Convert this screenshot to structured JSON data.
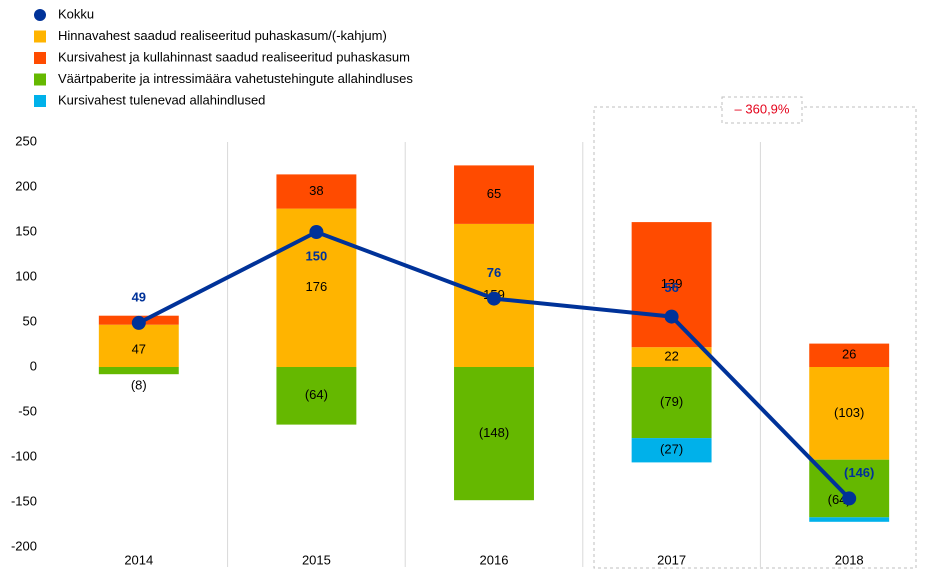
{
  "chart_data": {
    "type": "stacked_bar_line",
    "categories": [
      "2014",
      "2015",
      "2016",
      "2017",
      "2018"
    ],
    "series": [
      {
        "name": "Hinnavahest saadud realiseeritud puhaskasum/(-kahjum)",
        "color": "#ffb400",
        "values": [
          47,
          176,
          159,
          22,
          -103
        ],
        "value_labels": [
          "47",
          "176",
          "159",
          "22",
          "(103)"
        ]
      },
      {
        "name": "Kursivahest ja kullahinnast saadud realiseeritud puhaskasum",
        "color": "#ff4b00",
        "values": [
          10,
          38,
          65,
          139,
          26
        ],
        "value_labels": [
          null,
          "38",
          "65",
          "139",
          "26"
        ]
      },
      {
        "name": "Väärtpaberite ja intressimäära vahetustehingute allahindluses",
        "color": "#65b800",
        "values": [
          -8,
          -64,
          -148,
          -79,
          -64
        ],
        "value_labels": [
          "(8)",
          "(64)",
          "(148)",
          "(79)",
          "(64)"
        ]
      },
      {
        "name": "Kursivahest tulenevad allahindlused",
        "color": "#00b1ea",
        "values": [
          0,
          0,
          0,
          -27,
          -5
        ],
        "value_labels": [
          null,
          null,
          null,
          "(27)",
          null
        ]
      }
    ],
    "line": {
      "name": "Kokku",
      "color": "#003299",
      "values": [
        49,
        150,
        76,
        56,
        -146
      ],
      "value_labels": [
        "49",
        "150",
        "76",
        "56",
        "(146)"
      ]
    },
    "annotation": "– 360,9%",
    "ylim": [
      -200,
      250
    ],
    "yticks": [
      -200,
      -150,
      -100,
      -50,
      0,
      50,
      100,
      150,
      200,
      250
    ],
    "legend": "top-left"
  }
}
